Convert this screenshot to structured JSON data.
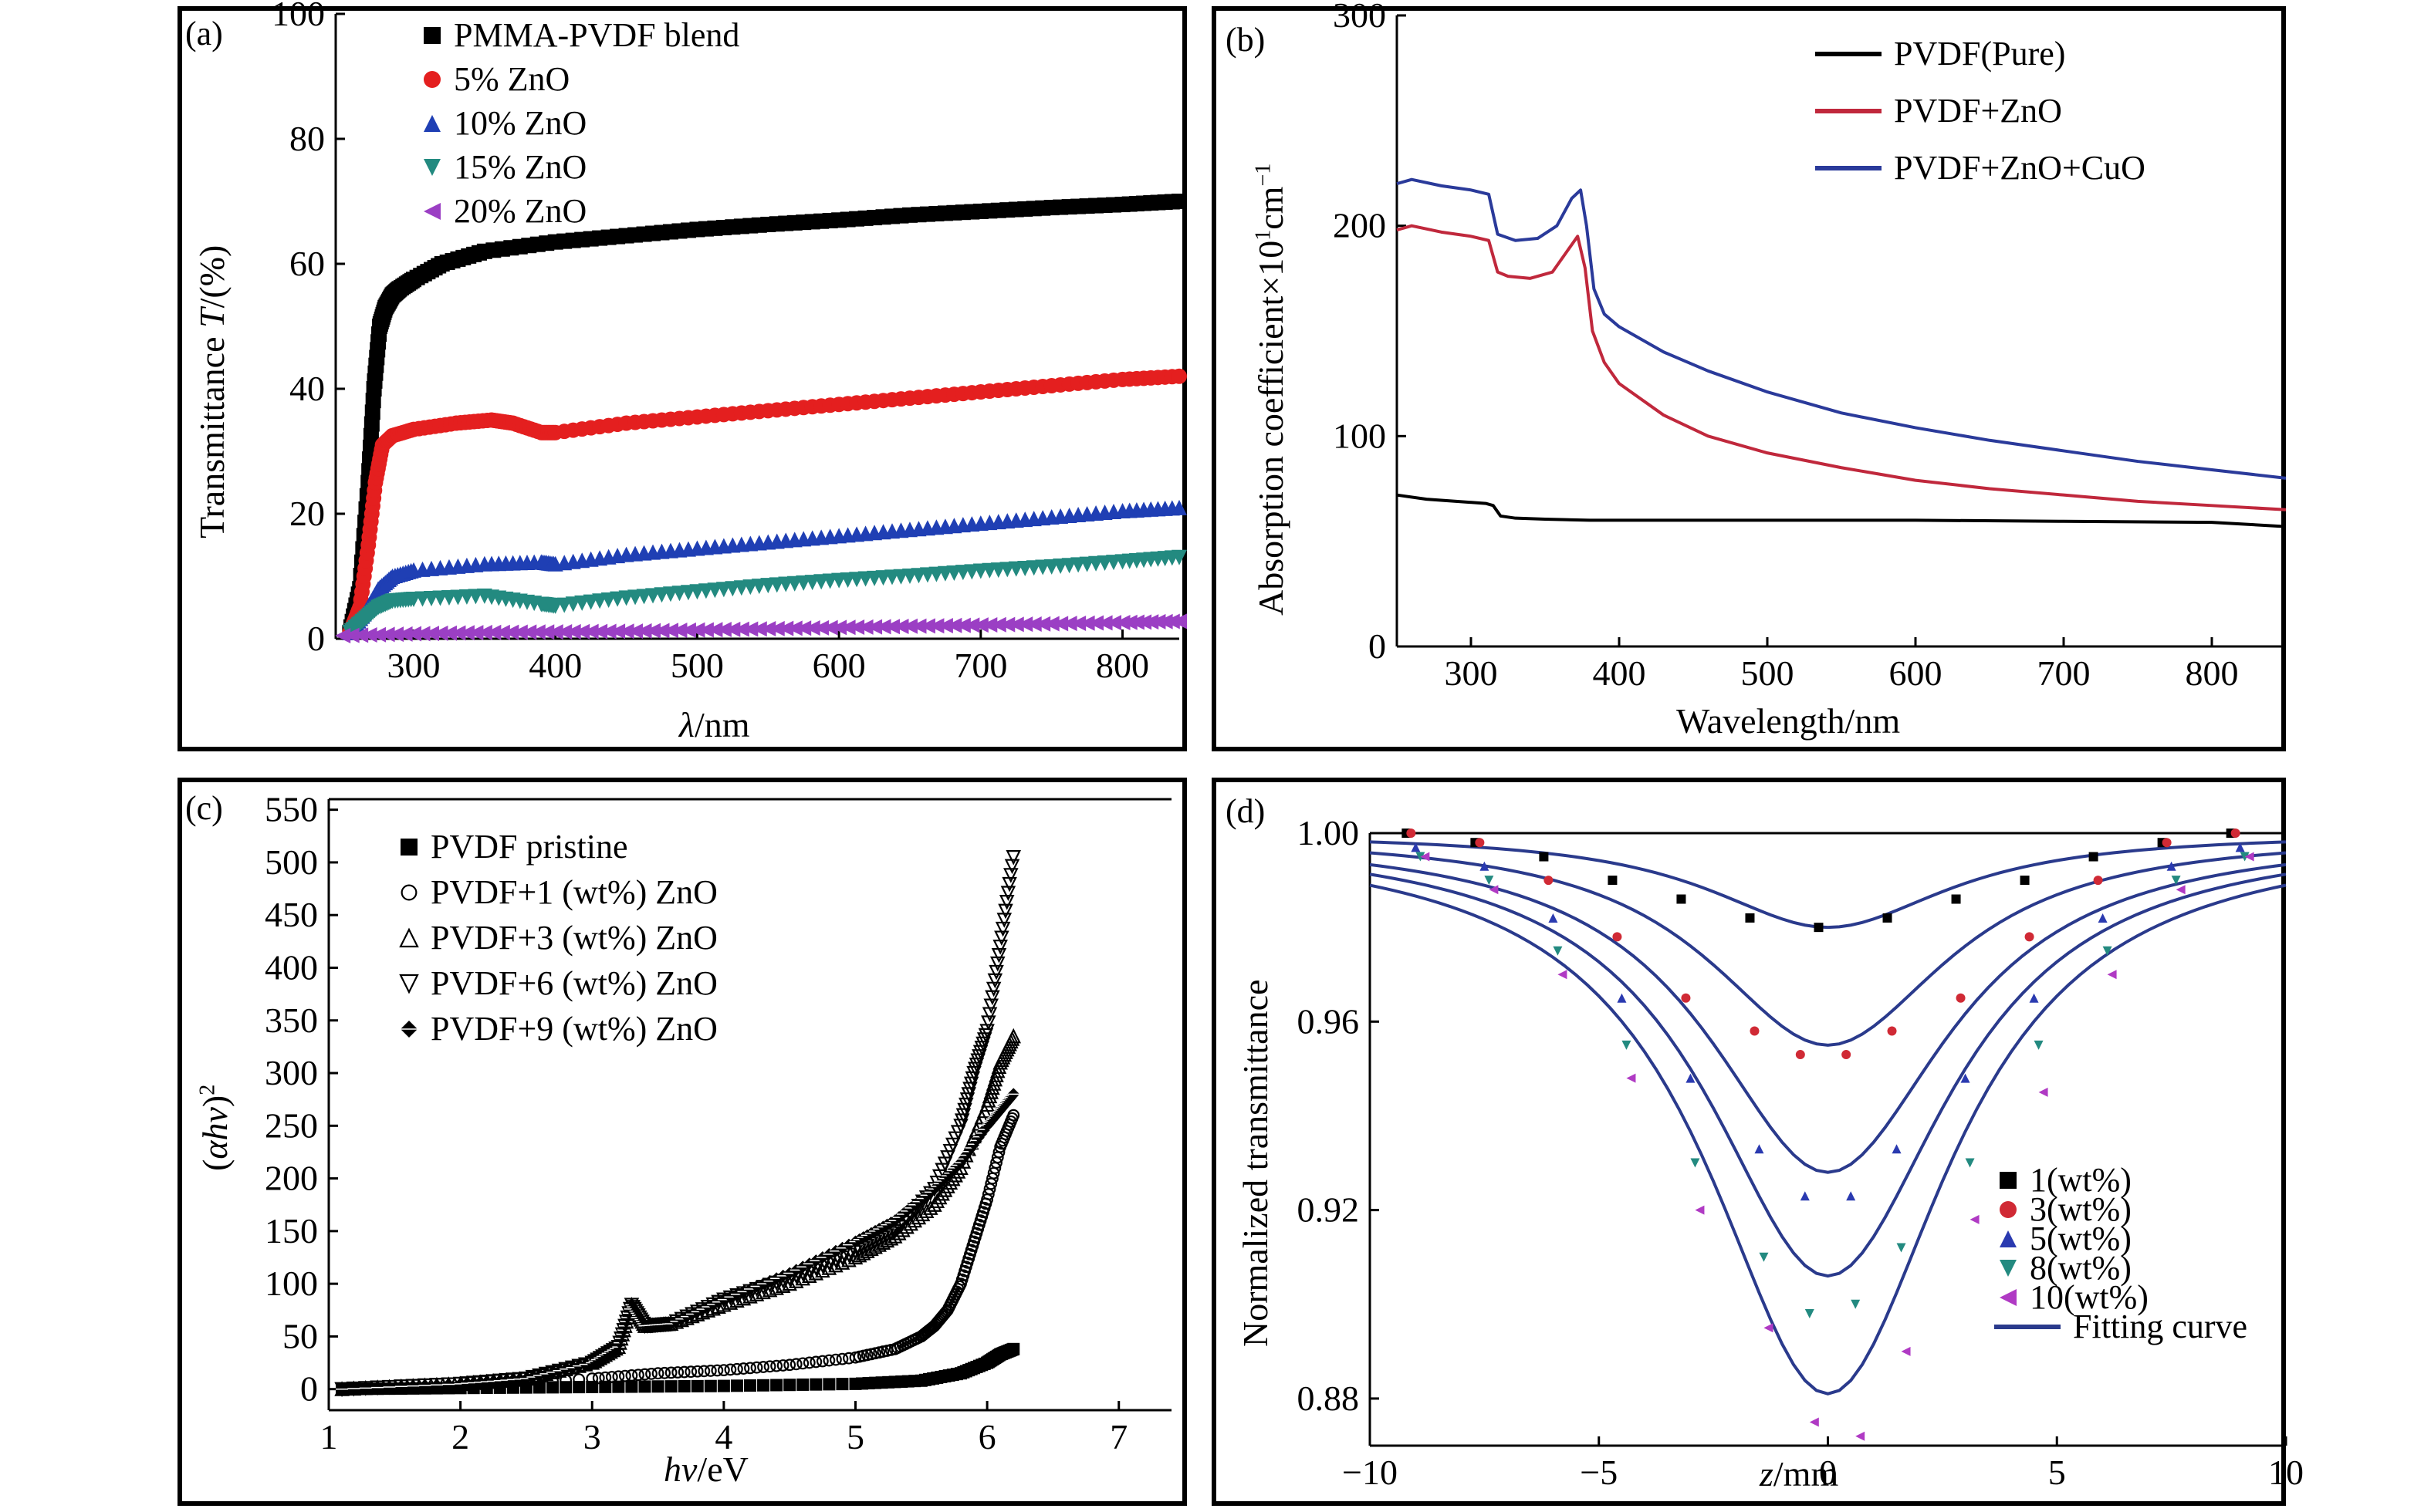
{
  "panels": {
    "a": {
      "label": "(a)",
      "xlabel_sym": "λ",
      "xlabel_unit": "/nm",
      "ylabel_main": "Transmittance ",
      "ylabel_sym": "T",
      "ylabel_unit": "/(%)"
    },
    "b": {
      "label": "(b)",
      "xlabel": "Wavelength/nm",
      "ylabel_main": "Absorption coefficient×10",
      "ylabel_sup1": "1",
      "ylabel_mid": "cm",
      "ylabel_sup2": "−1"
    },
    "c": {
      "label": "(c)",
      "xlabel_sym": "hv",
      "xlabel_unit": "/eV",
      "ylabel_open": "(",
      "ylabel_sym": "αhv",
      "ylabel_close": ")",
      "ylabel_sup": "2"
    },
    "d": {
      "label": "(d)",
      "xlabel_sym": "z",
      "xlabel_unit": "/mm",
      "ylabel": "Normalized transmittance"
    }
  },
  "chart_data": [
    {
      "id": "a",
      "type": "scatter",
      "xlim": [
        245,
        840
      ],
      "ylim": [
        0,
        100
      ],
      "xticks": [
        300,
        400,
        500,
        600,
        700,
        800
      ],
      "xtick_labels": [
        "300",
        "400",
        "500",
        "600",
        "700",
        "800"
      ],
      "yticks": [
        0,
        20,
        40,
        60,
        80,
        100
      ],
      "ytick_labels": [
        "0",
        "20",
        "40",
        "60",
        "80",
        "100"
      ],
      "legend_position": "top-left",
      "series": [
        {
          "name": "PMMA-PVDF blend",
          "color": "#000000",
          "marker": "square",
          "x": [
            255,
            262,
            268,
            272,
            276,
            280,
            285,
            290,
            300,
            320,
            350,
            400,
            450,
            500,
            550,
            600,
            650,
            700,
            750,
            800,
            840
          ],
          "y": [
            1,
            8,
            25,
            40,
            50,
            53,
            55,
            56,
            57.5,
            60,
            62,
            63.5,
            64.5,
            65.5,
            66.3,
            67,
            67.8,
            68.4,
            69,
            69.5,
            70
          ]
        },
        {
          "name": "5% ZnO",
          "color": "#e41f1f",
          "marker": "circle",
          "x": [
            255,
            262,
            268,
            273,
            278,
            285,
            300,
            330,
            355,
            370,
            390,
            400,
            450,
            500,
            550,
            600,
            650,
            700,
            750,
            800,
            840
          ],
          "y": [
            1,
            5,
            15,
            25,
            31,
            32.5,
            33.5,
            34.5,
            35,
            34.5,
            33,
            33,
            34.5,
            35.5,
            36.5,
            37.5,
            38.5,
            39.5,
            40.5,
            41.5,
            42
          ]
        },
        {
          "name": "10% ZnO",
          "color": "#1f3fb4",
          "marker": "triangle-up",
          "x": [
            255,
            265,
            275,
            285,
            300,
            350,
            390,
            400,
            450,
            500,
            550,
            600,
            650,
            700,
            750,
            800,
            840
          ],
          "y": [
            1,
            4,
            8,
            10,
            11,
            12,
            12.3,
            12,
            13.5,
            14.5,
            15.5,
            16.5,
            17.5,
            18.5,
            19.5,
            20.5,
            21
          ]
        },
        {
          "name": "15% ZnO",
          "color": "#238a80",
          "marker": "triangle-down",
          "x": [
            255,
            265,
            275,
            285,
            300,
            350,
            390,
            400,
            450,
            500,
            550,
            600,
            650,
            700,
            750,
            800,
            840
          ],
          "y": [
            1,
            3,
            5,
            6,
            6.3,
            6.8,
            5.5,
            5.2,
            6.5,
            7.5,
            8.5,
            9.3,
            10,
            10.8,
            11.5,
            12.3,
            13
          ]
        },
        {
          "name": "20% ZnO",
          "color": "#9b3fc4",
          "marker": "triangle-left",
          "x": [
            250,
            300,
            350,
            400,
            450,
            500,
            550,
            600,
            650,
            700,
            750,
            800,
            840
          ],
          "y": [
            0.5,
            0.8,
            1,
            1.1,
            1.2,
            1.4,
            1.6,
            1.8,
            2,
            2.2,
            2.4,
            2.6,
            2.8
          ]
        }
      ]
    },
    {
      "id": "b",
      "type": "line",
      "xlim": [
        250,
        850
      ],
      "ylim": [
        0,
        300
      ],
      "xticks": [
        300,
        400,
        500,
        600,
        700,
        800
      ],
      "xtick_labels": [
        "300",
        "400",
        "500",
        "600",
        "700",
        "800"
      ],
      "yticks": [
        0,
        100,
        200,
        300
      ],
      "ytick_labels": [
        "0",
        "100",
        "200",
        "300"
      ],
      "legend_position": "top-right",
      "series": [
        {
          "name": "PVDF(Pure)",
          "color": "#000000",
          "x": [
            250,
            270,
            290,
            310,
            315,
            320,
            330,
            350,
            380,
            400,
            500,
            600,
            700,
            800,
            850
          ],
          "y": [
            72,
            70,
            69,
            68,
            67,
            62,
            61,
            60.5,
            60,
            60,
            60,
            60,
            59.5,
            59,
            57
          ]
        },
        {
          "name": "PVDF+ZnO",
          "color": "#c0283c",
          "x": [
            250,
            260,
            280,
            300,
            312,
            318,
            325,
            340,
            355,
            365,
            372,
            377,
            382,
            390,
            400,
            430,
            460,
            500,
            550,
            600,
            650,
            700,
            750,
            800,
            850
          ],
          "y": [
            198,
            200,
            197,
            195,
            193,
            178,
            176,
            175,
            178,
            188,
            195,
            180,
            150,
            135,
            125,
            110,
            100,
            92,
            85,
            79,
            75,
            72,
            69,
            67,
            65
          ]
        },
        {
          "name": "PVDF+ZnO+CuO",
          "color": "#2a3a9a",
          "x": [
            250,
            260,
            280,
            300,
            312,
            318,
            330,
            345,
            358,
            368,
            374,
            378,
            383,
            390,
            400,
            430,
            460,
            500,
            550,
            600,
            650,
            700,
            750,
            800,
            850
          ],
          "y": [
            220,
            222,
            219,
            217,
            215,
            196,
            193,
            194,
            200,
            213,
            217,
            200,
            170,
            158,
            152,
            140,
            131,
            121,
            111,
            104,
            98,
            93,
            88,
            84,
            80
          ]
        }
      ]
    },
    {
      "id": "c",
      "type": "scatter",
      "xlim": [
        1,
        7.4
      ],
      "ylim": [
        -20,
        560
      ],
      "xticks": [
        1,
        2,
        3,
        4,
        5,
        6,
        7
      ],
      "xtick_labels": [
        "1",
        "2",
        "3",
        "4",
        "5",
        "6",
        "7"
      ],
      "yticks": [
        0,
        50,
        100,
        150,
        200,
        250,
        300,
        350,
        400,
        450,
        500,
        550
      ],
      "ytick_labels": [
        "0",
        "50",
        "100",
        "150",
        "200",
        "250",
        "300",
        "350",
        "400",
        "450",
        "500",
        "550"
      ],
      "legend_position": "top-left",
      "series": [
        {
          "name": "PVDF pristine",
          "color": "#000000",
          "marker": "square",
          "x": [
            1.1,
            2,
            3,
            4,
            5,
            5.5,
            5.8,
            6,
            6.1,
            6.2
          ],
          "y": [
            0,
            1,
            2,
            3,
            5,
            8,
            15,
            25,
            33,
            38
          ]
        },
        {
          "name": "PVDF+1 (wt%) ZnO",
          "color": "#000000",
          "marker": "circle-open",
          "x": [
            1.1,
            2,
            3,
            3.5,
            4,
            4.5,
            5,
            5.3,
            5.5,
            5.6,
            5.7,
            5.8,
            5.9,
            6,
            6.1,
            6.2
          ],
          "y": [
            0,
            2,
            10,
            15,
            18,
            23,
            30,
            38,
            50,
            60,
            75,
            100,
            140,
            180,
            230,
            260
          ]
        },
        {
          "name": "PVDF+3 (wt%) ZnO",
          "color": "#000000",
          "marker": "triangle-up-open",
          "x": [
            1.1,
            2,
            2.5,
            3,
            3.2,
            3.3,
            3.4,
            3.6,
            4,
            4.5,
            5,
            5.3,
            5.6,
            5.8,
            6,
            6.1,
            6.2
          ],
          "y": [
            0,
            5,
            10,
            25,
            40,
            80,
            60,
            62,
            80,
            100,
            125,
            145,
            175,
            210,
            270,
            310,
            335
          ]
        },
        {
          "name": "PVDF+6 (wt%) ZnO",
          "color": "#000000",
          "marker": "triangle-down-open",
          "x": [
            1.1,
            2,
            2.5,
            3,
            3.2,
            3.3,
            3.4,
            3.6,
            4,
            4.5,
            5,
            5.3,
            5.6,
            5.8,
            5.9,
            6,
            6.1,
            6.2
          ],
          "y": [
            0,
            5,
            10,
            25,
            40,
            80,
            60,
            62,
            85,
            105,
            130,
            150,
            190,
            250,
            300,
            340,
            420,
            505
          ]
        },
        {
          "name": "PVDF+9 (wt%) ZnO",
          "color": "#000000",
          "marker": "diamond-cross",
          "x": [
            1.1,
            2,
            2.5,
            3,
            3.2,
            3.3,
            3.4,
            3.6,
            4,
            4.5,
            5,
            5.3,
            5.6,
            5.8,
            6,
            6.1,
            6.2
          ],
          "y": [
            0,
            5,
            10,
            25,
            40,
            80,
            60,
            62,
            85,
            110,
            140,
            160,
            190,
            215,
            250,
            265,
            280
          ]
        }
      ]
    },
    {
      "id": "d",
      "type": "scatter",
      "xlim": [
        -10,
        10
      ],
      "ylim": [
        0.87,
        1.0
      ],
      "xticks": [
        -10,
        -5,
        0,
        5,
        10
      ],
      "xtick_labels": [
        "−10",
        "−5",
        "0",
        "5",
        "10"
      ],
      "yticks": [
        0.88,
        0.92,
        0.96,
        1.0
      ],
      "ytick_labels": [
        "0.88",
        "0.92",
        "0.96",
        "1.00"
      ],
      "legend_position": "bottom-right",
      "fitting_curve": {
        "name": "Fitting curve",
        "color": "#2a3a8c",
        "minima": [
          0.98,
          0.955,
          0.928,
          0.906,
          0.881
        ]
      },
      "series": [
        {
          "name": "1(wt%)",
          "color": "#000000",
          "marker": "square",
          "x": [
            -9,
            -7.5,
            -6,
            -4.5,
            -3,
            -1.5,
            0,
            1.5,
            3,
            4.5,
            6,
            7.5,
            9
          ],
          "y": [
            1.0,
            0.998,
            0.995,
            0.99,
            0.986,
            0.982,
            0.98,
            0.982,
            0.986,
            0.99,
            0.995,
            0.998,
            1.0
          ]
        },
        {
          "name": "3(wt%)",
          "color": "#d02a35",
          "marker": "circle",
          "x": [
            -9,
            -7.5,
            -6,
            -4.5,
            -3,
            -1.5,
            -0.5,
            0.5,
            1.5,
            3,
            4.5,
            6,
            7.5,
            9
          ],
          "y": [
            1.0,
            0.998,
            0.99,
            0.978,
            0.965,
            0.958,
            0.953,
            0.953,
            0.958,
            0.965,
            0.978,
            0.99,
            0.998,
            1.0
          ]
        },
        {
          "name": "5(wt%)",
          "color": "#2a3ab0",
          "marker": "triangle-up",
          "x": [
            -9,
            -7.5,
            -6,
            -4.5,
            -3,
            -1.5,
            -0.5,
            0.5,
            1.5,
            3,
            4.5,
            6,
            7.5,
            9
          ],
          "y": [
            0.997,
            0.993,
            0.982,
            0.965,
            0.948,
            0.933,
            0.923,
            0.923,
            0.933,
            0.948,
            0.965,
            0.982,
            0.993,
            0.997
          ]
        },
        {
          "name": "8(wt%)",
          "color": "#238a80",
          "marker": "triangle-down",
          "x": [
            -9,
            -7.5,
            -6,
            -4.5,
            -3,
            -1.5,
            -0.5,
            0.5,
            1.5,
            3,
            4.5,
            6,
            7.5,
            9
          ],
          "y": [
            0.995,
            0.99,
            0.975,
            0.955,
            0.93,
            0.91,
            0.898,
            0.9,
            0.912,
            0.93,
            0.955,
            0.975,
            0.99,
            0.995
          ]
        },
        {
          "name": "10(wt%)",
          "color": "#b03ac4",
          "marker": "triangle-left",
          "x": [
            -9,
            -7.5,
            -6,
            -4.5,
            -3,
            -1.5,
            -0.5,
            0.5,
            1.5,
            3,
            4.5,
            6,
            7.5,
            9
          ],
          "y": [
            0.995,
            0.988,
            0.97,
            0.948,
            0.92,
            0.895,
            0.875,
            0.872,
            0.89,
            0.918,
            0.945,
            0.97,
            0.988,
            0.995
          ]
        }
      ]
    }
  ]
}
